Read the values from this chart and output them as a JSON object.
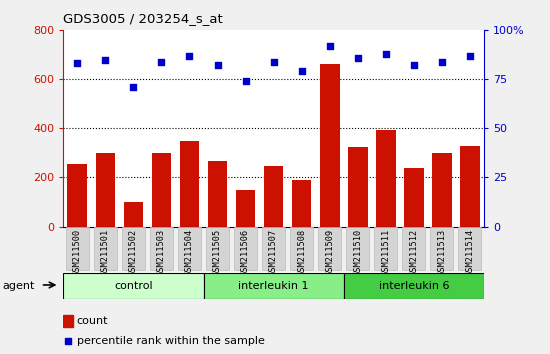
{
  "title": "GDS3005 / 203254_s_at",
  "samples": [
    "GSM211500",
    "GSM211501",
    "GSM211502",
    "GSM211503",
    "GSM211504",
    "GSM211505",
    "GSM211506",
    "GSM211507",
    "GSM211508",
    "GSM211509",
    "GSM211510",
    "GSM211511",
    "GSM211512",
    "GSM211513",
    "GSM211514"
  ],
  "counts": [
    255,
    300,
    100,
    300,
    350,
    265,
    148,
    248,
    190,
    660,
    325,
    395,
    240,
    300,
    330
  ],
  "percentiles": [
    83,
    85,
    71,
    84,
    87,
    82,
    74,
    84,
    79,
    92,
    86,
    88,
    82,
    84,
    87
  ],
  "bar_color": "#cc1100",
  "dot_color": "#0000cc",
  "groups": [
    {
      "label": "control",
      "start": 0,
      "end": 5,
      "color": "#ccffcc"
    },
    {
      "label": "interleukin 1",
      "start": 5,
      "end": 10,
      "color": "#88ee88"
    },
    {
      "label": "interleukin 6",
      "start": 10,
      "end": 15,
      "color": "#44cc44"
    }
  ],
  "left_ylim": [
    0,
    800
  ],
  "right_ylim": [
    0,
    100
  ],
  "left_yticks": [
    0,
    200,
    400,
    600,
    800
  ],
  "right_yticks": [
    0,
    25,
    50,
    75,
    100
  ],
  "grid_values": [
    200,
    400,
    600
  ],
  "background_color": "#f0f0f0",
  "plot_bg_color": "#ffffff",
  "left_axis_color": "#cc1100",
  "right_axis_color": "#0000cc",
  "agent_label": "agent",
  "tick_box_color": "#d4d4d4",
  "tick_box_edge_color": "#bbbbbb"
}
